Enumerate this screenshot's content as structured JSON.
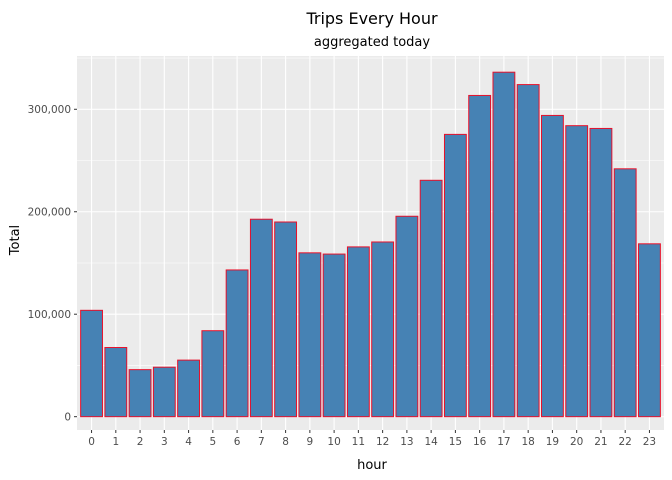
{
  "chart_data": {
    "type": "bar",
    "title": "Trips Every Hour",
    "subtitle": "aggregated today",
    "xlabel": "hour",
    "ylabel": "Total",
    "categories": [
      "0",
      "1",
      "2",
      "3",
      "4",
      "5",
      "6",
      "7",
      "8",
      "9",
      "10",
      "11",
      "12",
      "13",
      "14",
      "15",
      "16",
      "17",
      "18",
      "19",
      "20",
      "21",
      "22",
      "23"
    ],
    "values": [
      103800,
      67500,
      45900,
      48300,
      55200,
      83900,
      143200,
      192700,
      190000,
      159900,
      158700,
      165700,
      170500,
      195600,
      230700,
      275500,
      313500,
      336200,
      324100,
      294000,
      284000,
      281300,
      241900,
      168700
    ],
    "ylim": [
      -13000,
      352000
    ],
    "yticks": [
      0,
      100000,
      200000,
      300000
    ],
    "ytick_labels": [
      "0",
      "100,000",
      "200,000",
      "300,000"
    ],
    "grid": true,
    "colors": {
      "bar_fill": "#4682B4",
      "bar_outline": "#E8102A",
      "panel_background": "#EBEBEB",
      "gridline": "#FFFFFF",
      "tick_text": "#4D4D4D"
    }
  }
}
